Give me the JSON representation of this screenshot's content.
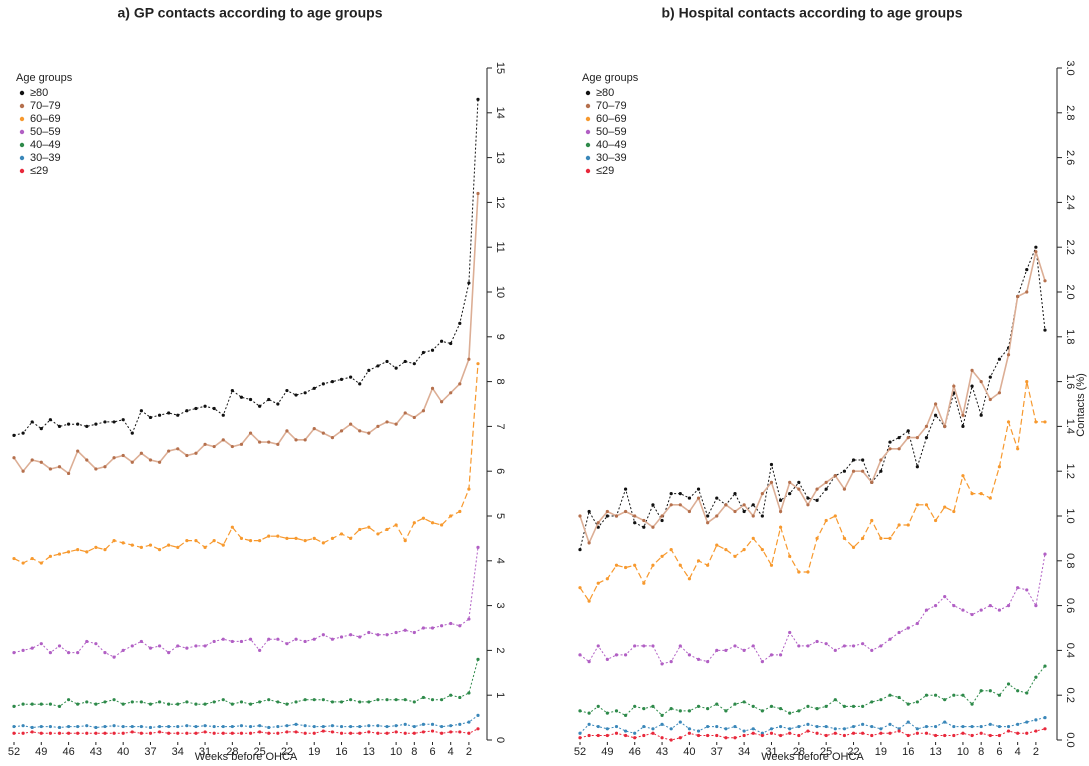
{
  "chart_data": [
    {
      "type": "line",
      "title": "a) GP contacts according to age groups",
      "x_label": "Weeks before OHCA",
      "legend_title": "Age groups",
      "x": [
        52,
        51,
        50,
        49,
        48,
        47,
        46,
        45,
        44,
        43,
        42,
        41,
        40,
        39,
        38,
        37,
        36,
        35,
        34,
        33,
        32,
        31,
        30,
        29,
        28,
        27,
        26,
        25,
        24,
        23,
        22,
        21,
        20,
        19,
        18,
        17,
        16,
        15,
        14,
        13,
        12,
        11,
        10,
        9,
        8,
        7,
        6,
        5,
        4,
        3,
        2,
        1
      ],
      "xlim": [
        52,
        1
      ],
      "xticks": [
        52,
        49,
        46,
        43,
        40,
        37,
        34,
        31,
        28,
        25,
        22,
        19,
        16,
        13,
        10,
        8,
        6,
        4,
        2
      ],
      "ylim": [
        0,
        15
      ],
      "yticks": [
        0,
        1,
        2,
        3,
        4,
        5,
        6,
        7,
        8,
        9,
        10,
        11,
        12,
        13,
        14,
        15
      ],
      "series": [
        {
          "name": "≥80",
          "color": "#111111",
          "values": [
            6.8,
            6.85,
            7.1,
            6.95,
            7.15,
            7.0,
            7.05,
            7.05,
            7.0,
            7.05,
            7.1,
            7.1,
            7.15,
            6.85,
            7.35,
            7.2,
            7.25,
            7.3,
            7.25,
            7.35,
            7.4,
            7.45,
            7.4,
            7.25,
            7.8,
            7.65,
            7.6,
            7.45,
            7.6,
            7.5,
            7.8,
            7.7,
            7.75,
            7.85,
            7.95,
            8.0,
            8.05,
            8.1,
            7.95,
            8.25,
            8.35,
            8.45,
            8.3,
            8.45,
            8.4,
            8.65,
            8.7,
            8.9,
            8.85,
            9.3,
            10.2,
            14.3
          ]
        },
        {
          "name": "70–79",
          "color": "#b5704d",
          "values": [
            6.3,
            6.0,
            6.25,
            6.2,
            6.05,
            6.1,
            5.95,
            6.45,
            6.25,
            6.05,
            6.1,
            6.3,
            6.35,
            6.2,
            6.4,
            6.25,
            6.2,
            6.45,
            6.5,
            6.35,
            6.4,
            6.6,
            6.55,
            6.7,
            6.55,
            6.6,
            6.85,
            6.65,
            6.65,
            6.6,
            6.9,
            6.7,
            6.7,
            6.95,
            6.85,
            6.75,
            6.9,
            7.05,
            6.9,
            6.85,
            7.0,
            7.1,
            7.05,
            7.3,
            7.2,
            7.35,
            7.85,
            7.55,
            7.75,
            7.95,
            8.5,
            12.2
          ]
        },
        {
          "name": "60–69",
          "color": "#f7992e",
          "values": [
            4.05,
            3.95,
            4.05,
            3.95,
            4.1,
            4.15,
            4.2,
            4.25,
            4.2,
            4.3,
            4.25,
            4.45,
            4.4,
            4.35,
            4.3,
            4.35,
            4.25,
            4.35,
            4.3,
            4.45,
            4.45,
            4.3,
            4.45,
            4.35,
            4.75,
            4.5,
            4.45,
            4.45,
            4.55,
            4.55,
            4.5,
            4.5,
            4.45,
            4.5,
            4.4,
            4.5,
            4.6,
            4.5,
            4.7,
            4.75,
            4.6,
            4.7,
            4.8,
            4.45,
            4.85,
            4.95,
            4.85,
            4.8,
            5.0,
            5.1,
            5.6,
            8.4
          ]
        },
        {
          "name": "50–59",
          "color": "#b15fc4",
          "values": [
            1.95,
            2.0,
            2.05,
            2.15,
            1.95,
            2.1,
            1.95,
            1.95,
            2.2,
            2.15,
            1.95,
            1.85,
            2.0,
            2.1,
            2.2,
            2.05,
            2.1,
            1.95,
            2.1,
            2.05,
            2.1,
            2.1,
            2.2,
            2.25,
            2.2,
            2.2,
            2.25,
            2.0,
            2.25,
            2.25,
            2.15,
            2.25,
            2.2,
            2.25,
            2.35,
            2.25,
            2.3,
            2.35,
            2.3,
            2.4,
            2.35,
            2.35,
            2.4,
            2.45,
            2.4,
            2.5,
            2.5,
            2.55,
            2.6,
            2.55,
            2.7,
            4.3
          ]
        },
        {
          "name": "40–49",
          "color": "#2e8a4a",
          "values": [
            0.75,
            0.8,
            0.8,
            0.8,
            0.8,
            0.75,
            0.9,
            0.8,
            0.85,
            0.8,
            0.85,
            0.9,
            0.8,
            0.85,
            0.85,
            0.8,
            0.85,
            0.8,
            0.8,
            0.85,
            0.8,
            0.8,
            0.85,
            0.9,
            0.8,
            0.85,
            0.8,
            0.85,
            0.9,
            0.85,
            0.8,
            0.85,
            0.9,
            0.9,
            0.9,
            0.85,
            0.85,
            0.9,
            0.85,
            0.85,
            0.9,
            0.9,
            0.9,
            0.9,
            0.85,
            0.95,
            0.9,
            0.9,
            1.0,
            0.95,
            1.05,
            1.8
          ]
        },
        {
          "name": "30–39",
          "color": "#3a87b9",
          "values": [
            0.3,
            0.32,
            0.28,
            0.3,
            0.3,
            0.28,
            0.3,
            0.3,
            0.32,
            0.28,
            0.3,
            0.32,
            0.3,
            0.3,
            0.3,
            0.28,
            0.3,
            0.3,
            0.3,
            0.32,
            0.3,
            0.32,
            0.3,
            0.3,
            0.3,
            0.32,
            0.3,
            0.32,
            0.28,
            0.3,
            0.32,
            0.35,
            0.32,
            0.3,
            0.3,
            0.32,
            0.3,
            0.3,
            0.3,
            0.32,
            0.32,
            0.3,
            0.32,
            0.35,
            0.3,
            0.35,
            0.35,
            0.3,
            0.32,
            0.35,
            0.4,
            0.55
          ]
        },
        {
          "name": "≤29",
          "color": "#e8283b",
          "values": [
            0.15,
            0.15,
            0.18,
            0.15,
            0.15,
            0.15,
            0.15,
            0.15,
            0.15,
            0.15,
            0.15,
            0.15,
            0.15,
            0.18,
            0.15,
            0.15,
            0.18,
            0.15,
            0.15,
            0.15,
            0.15,
            0.18,
            0.15,
            0.15,
            0.15,
            0.15,
            0.15,
            0.18,
            0.15,
            0.15,
            0.18,
            0.18,
            0.15,
            0.15,
            0.2,
            0.18,
            0.15,
            0.15,
            0.15,
            0.18,
            0.15,
            0.15,
            0.18,
            0.15,
            0.15,
            0.18,
            0.2,
            0.15,
            0.18,
            0.18,
            0.15,
            0.25
          ]
        }
      ]
    },
    {
      "type": "line",
      "title": "b) Hospital contacts according to age groups",
      "x_label": "Weeks before OHCA",
      "y_label": "Contacts (%)",
      "legend_title": "Age groups",
      "x": [
        52,
        51,
        50,
        49,
        48,
        47,
        46,
        45,
        44,
        43,
        42,
        41,
        40,
        39,
        38,
        37,
        36,
        35,
        34,
        33,
        32,
        31,
        30,
        29,
        28,
        27,
        26,
        25,
        24,
        23,
        22,
        21,
        20,
        19,
        18,
        17,
        16,
        15,
        14,
        13,
        12,
        11,
        10,
        9,
        8,
        7,
        6,
        5,
        4,
        3,
        2,
        1
      ],
      "xlim": [
        52,
        1
      ],
      "xticks": [
        52,
        49,
        46,
        43,
        40,
        37,
        34,
        31,
        28,
        25,
        22,
        19,
        16,
        13,
        10,
        8,
        6,
        4,
        2
      ],
      "ylim": [
        0,
        3
      ],
      "yticks": [
        {
          "value": 0,
          "label": "0.0"
        },
        0.2,
        0.4,
        0.6,
        0.8,
        {
          "value": 1,
          "label": "1.0"
        },
        1.2,
        1.4,
        1.6,
        1.8,
        {
          "value": 2,
          "label": "2.0"
        },
        2.2,
        2.4,
        2.6,
        2.8,
        {
          "value": 3,
          "label": "3.0"
        }
      ],
      "series": [
        {
          "name": "≥80",
          "color": "#111111",
          "values": [
            0.85,
            1.02,
            0.95,
            1.0,
            1.0,
            1.12,
            0.97,
            0.95,
            1.05,
            0.98,
            1.1,
            1.1,
            1.08,
            1.12,
            1.0,
            1.08,
            1.05,
            1.1,
            1.02,
            1.05,
            1.0,
            1.23,
            1.07,
            1.1,
            1.15,
            1.08,
            1.07,
            1.12,
            1.18,
            1.2,
            1.25,
            1.25,
            1.15,
            1.2,
            1.33,
            1.35,
            1.38,
            1.22,
            1.35,
            1.45,
            1.4,
            1.55,
            1.4,
            1.58,
            1.45,
            1.62,
            1.7,
            1.75,
            1.98,
            2.1,
            2.2,
            1.83
          ]
        },
        {
          "name": "70–79",
          "color": "#b5704d",
          "values": [
            1.0,
            0.88,
            0.97,
            1.02,
            1.0,
            1.02,
            1.0,
            0.98,
            0.95,
            1.0,
            1.05,
            1.05,
            1.02,
            1.08,
            0.97,
            1.0,
            1.05,
            1.02,
            1.05,
            1.0,
            1.1,
            1.15,
            1.02,
            1.15,
            1.12,
            1.05,
            1.12,
            1.15,
            1.18,
            1.12,
            1.2,
            1.2,
            1.15,
            1.25,
            1.3,
            1.3,
            1.35,
            1.35,
            1.4,
            1.5,
            1.4,
            1.58,
            1.45,
            1.65,
            1.6,
            1.52,
            1.55,
            1.72,
            1.98,
            2.0,
            2.18,
            2.05
          ]
        },
        {
          "name": "60–69",
          "color": "#f7992e",
          "values": [
            0.68,
            0.62,
            0.7,
            0.72,
            0.78,
            0.77,
            0.78,
            0.7,
            0.78,
            0.82,
            0.85,
            0.78,
            0.72,
            0.8,
            0.78,
            0.87,
            0.85,
            0.82,
            0.85,
            0.9,
            0.85,
            0.78,
            0.95,
            0.82,
            0.75,
            0.75,
            0.9,
            0.98,
            1.0,
            0.9,
            0.86,
            0.9,
            0.98,
            0.9,
            0.9,
            0.96,
            0.96,
            1.05,
            1.05,
            0.98,
            1.04,
            1.02,
            1.18,
            1.1,
            1.1,
            1.08,
            1.22,
            1.42,
            1.3,
            1.6,
            1.42,
            1.42
          ]
        },
        {
          "name": "50–59",
          "color": "#b15fc4",
          "values": [
            0.38,
            0.35,
            0.42,
            0.36,
            0.38,
            0.38,
            0.42,
            0.42,
            0.42,
            0.34,
            0.35,
            0.42,
            0.38,
            0.36,
            0.35,
            0.4,
            0.4,
            0.42,
            0.4,
            0.42,
            0.35,
            0.38,
            0.38,
            0.48,
            0.42,
            0.42,
            0.44,
            0.43,
            0.4,
            0.42,
            0.42,
            0.43,
            0.4,
            0.42,
            0.45,
            0.48,
            0.5,
            0.52,
            0.58,
            0.6,
            0.64,
            0.6,
            0.58,
            0.56,
            0.58,
            0.6,
            0.58,
            0.6,
            0.68,
            0.67,
            0.6,
            0.83
          ]
        },
        {
          "name": "40–49",
          "color": "#2e8a4a",
          "values": [
            0.13,
            0.12,
            0.15,
            0.12,
            0.13,
            0.11,
            0.15,
            0.14,
            0.15,
            0.11,
            0.14,
            0.13,
            0.13,
            0.15,
            0.14,
            0.16,
            0.13,
            0.16,
            0.17,
            0.15,
            0.13,
            0.15,
            0.14,
            0.12,
            0.13,
            0.15,
            0.14,
            0.15,
            0.18,
            0.15,
            0.15,
            0.15,
            0.17,
            0.18,
            0.2,
            0.19,
            0.16,
            0.17,
            0.2,
            0.2,
            0.18,
            0.2,
            0.2,
            0.16,
            0.22,
            0.22,
            0.2,
            0.25,
            0.22,
            0.21,
            0.28,
            0.33
          ]
        },
        {
          "name": "30–39",
          "color": "#3a87b9",
          "values": [
            0.03,
            0.07,
            0.06,
            0.05,
            0.06,
            0.04,
            0.03,
            0.06,
            0.05,
            0.07,
            0.05,
            0.08,
            0.05,
            0.04,
            0.06,
            0.06,
            0.05,
            0.06,
            0.04,
            0.05,
            0.03,
            0.05,
            0.06,
            0.05,
            0.06,
            0.07,
            0.06,
            0.06,
            0.05,
            0.05,
            0.06,
            0.07,
            0.06,
            0.05,
            0.07,
            0.05,
            0.08,
            0.05,
            0.06,
            0.06,
            0.08,
            0.06,
            0.06,
            0.06,
            0.06,
            0.07,
            0.06,
            0.06,
            0.07,
            0.08,
            0.09,
            0.1
          ]
        },
        {
          "name": "≤29",
          "color": "#e8283b",
          "values": [
            0.01,
            0.02,
            0.02,
            0.02,
            0.03,
            0.02,
            0.01,
            0.02,
            0.03,
            0.01,
            0.0,
            0.01,
            0.03,
            0.02,
            0.02,
            0.02,
            0.01,
            0.01,
            0.02,
            0.03,
            0.02,
            0.03,
            0.02,
            0.03,
            0.02,
            0.04,
            0.03,
            0.02,
            0.03,
            0.02,
            0.03,
            0.03,
            0.02,
            0.03,
            0.03,
            0.04,
            0.02,
            0.03,
            0.03,
            0.02,
            0.02,
            0.02,
            0.03,
            0.02,
            0.03,
            0.02,
            0.02,
            0.04,
            0.03,
            0.03,
            0.04,
            0.05
          ]
        }
      ]
    }
  ]
}
